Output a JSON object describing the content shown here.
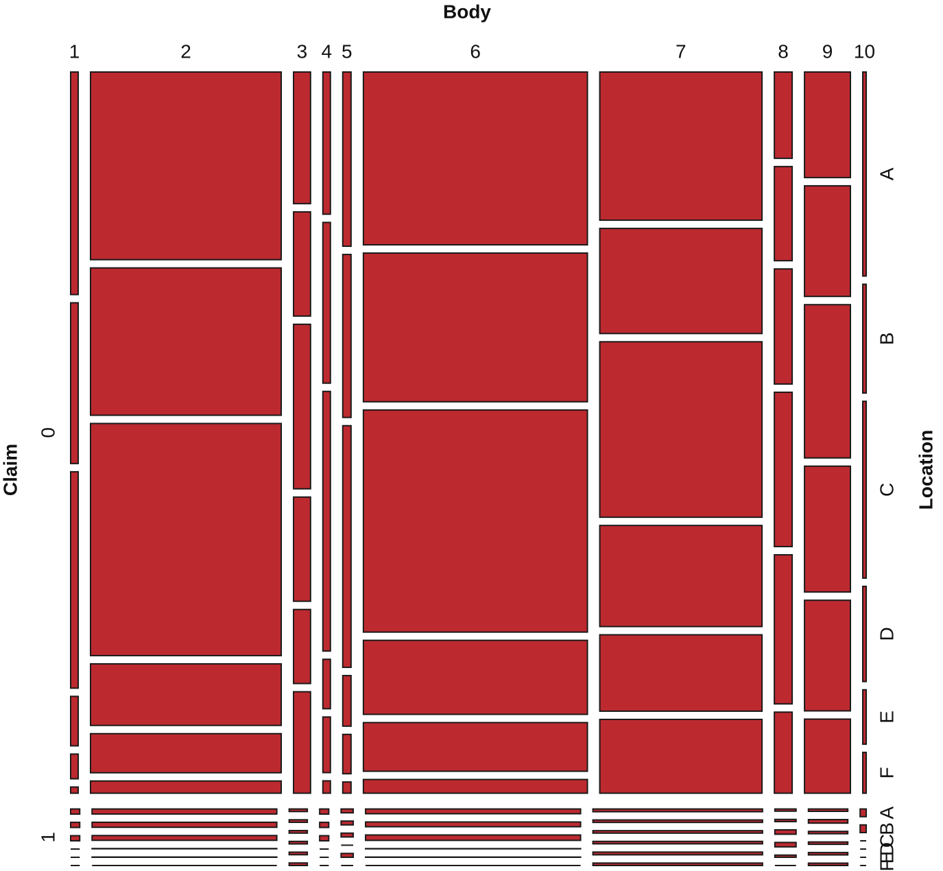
{
  "chart_data": {
    "type": "mosaic",
    "x_label": "Body",
    "y_label": "Claim",
    "z_label": "Location",
    "body_categories": [
      "1",
      "2",
      "3",
      "4",
      "5",
      "6",
      "7",
      "8",
      "9",
      "10"
    ],
    "claim_categories": [
      "0",
      "1"
    ],
    "location_categories": [
      "A",
      "B",
      "C",
      "D",
      "E",
      "F"
    ],
    "color": "#bc2a30",
    "counts": [
      [
        [
          36,
          26,
          35,
          8,
          4,
          1
        ],
        [
          768,
          603,
          950,
          252,
          160,
          50
        ],
        [
          48,
          38,
          60,
          38,
          27,
          37
        ],
        [
          23,
          26,
          42,
          8,
          9,
          2
        ],
        [
          31,
          29,
          43,
          9,
          7,
          2
        ],
        [
          831,
          715,
          1068,
          356,
          234,
          66
        ],
        [
          516,
          366,
          611,
          352,
          266,
          257
        ],
        [
          33,
          36,
          44,
          59,
          57,
          31
        ],
        [
          104,
          109,
          151,
          124,
          109,
          73
        ],
        [
          15,
          8,
          13,
          7,
          4,
          3
        ]
      ],
      [
        [
          1,
          1,
          1,
          0,
          0,
          0
        ],
        [
          20,
          20,
          19,
          1,
          1,
          0
        ],
        [
          1,
          1,
          1,
          1,
          1,
          1
        ],
        [
          1,
          1,
          1,
          0,
          0,
          0
        ],
        [
          1,
          1,
          1,
          0,
          1,
          0
        ],
        [
          22,
          22,
          25,
          1,
          1,
          0
        ],
        [
          10,
          9,
          9,
          9,
          10,
          9
        ],
        [
          1,
          1,
          2,
          2,
          1,
          0
        ],
        [
          2,
          3,
          2,
          2,
          2,
          2
        ],
        [
          1,
          1,
          0,
          0,
          0,
          0
        ]
      ]
    ]
  }
}
